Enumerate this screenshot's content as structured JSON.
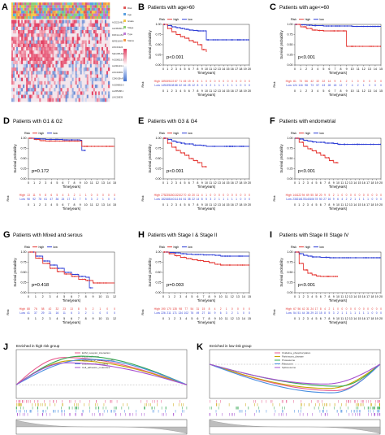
{
  "colors": {
    "high": "#e53935",
    "low": "#2f3fd6",
    "heat_red": "#e8476a",
    "heat_blue": "#4f7fd0"
  },
  "panel_a": {
    "letter": "A",
    "track_colors": [
      "#e05a5a",
      "#5aa0e0",
      "#f2c94c",
      "#8ecf73",
      "#c07cd6",
      "#f29a4c",
      "#6fd0c8",
      "#d06f9a"
    ],
    "side_genes": [
      "AC022148.1",
      "AL158166.1",
      "DDX11-AS1",
      "MIR210HG",
      "LINC01224",
      "SEC24B-AS1",
      "AC008115.3",
      "AL031123.1",
      "LINC02381",
      "CDKN2B-AS1",
      "AC099850.3",
      "AL355488.1",
      "LINC00839"
    ],
    "legend_labels": [
      "Risk",
      "Age",
      "Grade",
      "Stage",
      "Type",
      "Status"
    ]
  },
  "km_common": {
    "legend_title": "Risk",
    "legend_high": "high",
    "legend_low": "low",
    "y_label": "Survival probability",
    "x_label": "Time(years)",
    "y_ticks": [
      "0.00",
      "0.25",
      "0.50",
      "0.75",
      "1.00"
    ],
    "risk_label": "Risk",
    "risk_high": "High",
    "risk_low": "Low"
  },
  "km_panels": [
    {
      "letter": "B",
      "title": "Patients with age>60",
      "p": "p<0.001",
      "x_ticks": [
        "0",
        "1",
        "2",
        "3",
        "4",
        "5",
        "6",
        "7",
        "8",
        "9",
        "10",
        "11",
        "12",
        "13",
        "14",
        "15",
        "16",
        "17",
        "18",
        "19",
        "20"
      ],
      "high": [
        [
          0,
          1
        ],
        [
          1,
          0.9
        ],
        [
          2,
          0.82
        ],
        [
          3,
          0.75
        ],
        [
          4,
          0.7
        ],
        [
          5,
          0.66
        ],
        [
          6,
          0.6
        ],
        [
          7,
          0.56
        ],
        [
          8,
          0.5
        ],
        [
          9,
          0.38
        ],
        [
          10,
          0.32
        ]
      ],
      "low": [
        [
          0,
          1
        ],
        [
          1,
          0.97
        ],
        [
          2,
          0.94
        ],
        [
          3,
          0.92
        ],
        [
          4,
          0.9
        ],
        [
          5,
          0.88
        ],
        [
          6,
          0.86
        ],
        [
          7,
          0.85
        ],
        [
          8,
          0.84
        ],
        [
          9,
          0.84
        ],
        [
          10,
          0.62
        ],
        [
          20,
          0.62
        ]
      ],
      "risk_high": [
        "189",
        "159",
        "122",
        "87",
        "71",
        "45",
        "19",
        "8",
        "6",
        "1",
        "0",
        "0",
        "0",
        "0",
        "0",
        "0",
        "0",
        "0",
        "0",
        "0",
        "0"
      ],
      "risk_low": [
        "149",
        "139",
        "108",
        "88",
        "62",
        "46",
        "25",
        "12",
        "8",
        "4",
        "3",
        "2",
        "1",
        "1",
        "1",
        "1",
        "1",
        "1",
        "0",
        "0",
        "0"
      ]
    },
    {
      "letter": "C",
      "title": "Patients with age<=60",
      "p": "p<0.001",
      "x_ticks": [
        "0",
        "1",
        "2",
        "3",
        "4",
        "5",
        "6",
        "7",
        "8",
        "9",
        "10",
        "11",
        "12",
        "13",
        "14",
        "15"
      ],
      "high": [
        [
          0,
          1
        ],
        [
          1,
          0.94
        ],
        [
          2,
          0.9
        ],
        [
          3,
          0.86
        ],
        [
          4,
          0.85
        ],
        [
          5,
          0.84
        ],
        [
          8,
          0.84
        ],
        [
          9,
          0.46
        ],
        [
          15,
          0.46
        ]
      ],
      "low": [
        [
          0,
          1
        ],
        [
          1,
          0.99
        ],
        [
          2,
          0.98
        ],
        [
          3,
          0.97
        ],
        [
          5,
          0.96
        ],
        [
          10,
          0.95
        ],
        [
          15,
          0.95
        ]
      ],
      "risk_high": [
        "81",
        "73",
        "56",
        "42",
        "32",
        "22",
        "14",
        "9",
        "4",
        "2",
        "1",
        "0",
        "0",
        "0",
        "0",
        "0"
      ],
      "risk_low": [
        "124",
        "116",
        "98",
        "73",
        "57",
        "43",
        "28",
        "18",
        "12",
        "7",
        "4",
        "2",
        "1",
        "0",
        "0",
        "0"
      ]
    },
    {
      "letter": "D",
      "title": "Patients with G1 & G2",
      "p": "p=0.172",
      "x_ticks": [
        "0",
        "1",
        "2",
        "3",
        "4",
        "5",
        "6",
        "7",
        "8",
        "9",
        "10",
        "11",
        "12",
        "13",
        "14",
        "15"
      ],
      "high": [
        [
          0,
          1
        ],
        [
          1,
          0.97
        ],
        [
          2,
          0.94
        ],
        [
          3,
          0.93
        ],
        [
          5,
          0.93
        ],
        [
          9,
          0.93
        ],
        [
          9.3,
          0.8
        ],
        [
          15,
          0.8
        ]
      ],
      "low": [
        [
          0,
          1
        ],
        [
          1,
          0.99
        ],
        [
          2,
          0.98
        ],
        [
          3,
          0.97
        ],
        [
          6,
          0.96
        ],
        [
          9,
          0.95
        ],
        [
          9.3,
          0.7
        ],
        [
          10,
          0.7
        ]
      ],
      "risk_high": [
        "13",
        "11",
        "9",
        "8",
        "6",
        "5",
        "4",
        "3",
        "2",
        "1",
        "1",
        "0",
        "0",
        "0",
        "0",
        "0"
      ],
      "risk_low": [
        "98",
        "92",
        "78",
        "61",
        "47",
        "36",
        "24",
        "17",
        "11",
        "7",
        "5",
        "3",
        "2",
        "1",
        "0",
        "0"
      ]
    },
    {
      "letter": "E",
      "title": "Patients with G3 & G4",
      "p": "p<0.001",
      "x_ticks": [
        "0",
        "1",
        "2",
        "3",
        "4",
        "5",
        "6",
        "7",
        "8",
        "9",
        "10",
        "11",
        "12",
        "13",
        "14",
        "15",
        "16",
        "17",
        "18",
        "19",
        "20"
      ],
      "high": [
        [
          0,
          1
        ],
        [
          1,
          0.88
        ],
        [
          2,
          0.78
        ],
        [
          3,
          0.7
        ],
        [
          4,
          0.64
        ],
        [
          5,
          0.58
        ],
        [
          6,
          0.5
        ],
        [
          7,
          0.45
        ],
        [
          8,
          0.4
        ],
        [
          9,
          0.3
        ],
        [
          10,
          0.28
        ]
      ],
      "low": [
        [
          0,
          1
        ],
        [
          1,
          0.97
        ],
        [
          2,
          0.93
        ],
        [
          3,
          0.9
        ],
        [
          4,
          0.88
        ],
        [
          5,
          0.86
        ],
        [
          7,
          0.83
        ],
        [
          9,
          0.82
        ],
        [
          10,
          0.8
        ],
        [
          20,
          0.8
        ]
      ],
      "risk_high": [
        "275",
        "235",
        "180",
        "132",
        "102",
        "70",
        "40",
        "20",
        "11",
        "4",
        "1",
        "0",
        "0",
        "0",
        "0",
        "0",
        "0",
        "0",
        "0",
        "0",
        "0"
      ],
      "risk_low": [
        "182",
        "168",
        "140",
        "111",
        "84",
        "61",
        "38",
        "22",
        "14",
        "8",
        "5",
        "3",
        "2",
        "1",
        "1",
        "1",
        "1",
        "1",
        "0",
        "0",
        "0"
      ]
    },
    {
      "letter": "F",
      "title": "Patients with endometrial",
      "p": "p<0.001",
      "x_ticks": [
        "0",
        "1",
        "2",
        "3",
        "4",
        "5",
        "6",
        "7",
        "8",
        "9",
        "10",
        "11",
        "12",
        "13",
        "14",
        "15",
        "16",
        "17",
        "18",
        "19",
        "20"
      ],
      "high": [
        [
          0,
          1
        ],
        [
          1,
          0.9
        ],
        [
          2,
          0.8
        ],
        [
          3,
          0.74
        ],
        [
          4,
          0.69
        ],
        [
          5,
          0.64
        ],
        [
          6,
          0.58
        ],
        [
          7,
          0.52
        ],
        [
          8,
          0.45
        ],
        [
          9,
          0.4
        ],
        [
          10,
          0.38
        ]
      ],
      "low": [
        [
          0,
          1
        ],
        [
          1,
          0.98
        ],
        [
          2,
          0.95
        ],
        [
          3,
          0.93
        ],
        [
          4,
          0.91
        ],
        [
          5,
          0.9
        ],
        [
          7,
          0.88
        ],
        [
          9,
          0.87
        ],
        [
          10,
          0.85
        ],
        [
          20,
          0.85
        ]
      ],
      "risk_high": [
        "144",
        "122",
        "94",
        "69",
        "55",
        "38",
        "20",
        "9",
        "5",
        "2",
        "1",
        "0",
        "0",
        "0",
        "0",
        "0",
        "0",
        "0",
        "0",
        "0",
        "0"
      ],
      "risk_low": [
        "230",
        "216",
        "178",
        "140",
        "106",
        "78",
        "50",
        "27",
        "16",
        "9",
        "6",
        "4",
        "2",
        "2",
        "1",
        "1",
        "1",
        "1",
        "0",
        "0",
        "0"
      ]
    },
    {
      "letter": "G",
      "title": "Patients with Mixed and serous",
      "p": "p=0.418",
      "x_ticks": [
        "0",
        "1",
        "2",
        "3",
        "4",
        "5",
        "6",
        "7",
        "8",
        "9",
        "10",
        "11",
        "12"
      ],
      "high": [
        [
          0,
          1
        ],
        [
          1,
          0.85
        ],
        [
          2,
          0.72
        ],
        [
          3,
          0.6
        ],
        [
          4,
          0.52
        ],
        [
          5,
          0.46
        ],
        [
          6,
          0.4
        ],
        [
          7,
          0.33
        ],
        [
          8,
          0.3
        ],
        [
          9,
          0.24
        ],
        [
          12,
          0.24
        ]
      ],
      "low": [
        [
          0,
          1
        ],
        [
          1,
          0.9
        ],
        [
          2,
          0.78
        ],
        [
          3,
          0.68
        ],
        [
          4,
          0.6
        ],
        [
          5,
          0.5
        ],
        [
          6,
          0.45
        ],
        [
          7,
          0.4
        ],
        [
          8,
          0.38
        ],
        [
          8.5,
          0.12
        ],
        [
          9,
          0.12
        ]
      ],
      "risk_high": [
        "88",
        "76",
        "58",
        "42",
        "32",
        "23",
        "13",
        "8",
        "5",
        "2",
        "1",
        "0",
        "0"
      ],
      "risk_low": [
        "41",
        "37",
        "29",
        "21",
        "16",
        "11",
        "6",
        "3",
        "2",
        "1",
        "0",
        "0",
        "0"
      ]
    },
    {
      "letter": "H",
      "title": "Patients with Stage I & Stage II",
      "p": "p=0.003",
      "x_ticks": [
        "0",
        "1",
        "2",
        "3",
        "4",
        "5",
        "6",
        "7",
        "8",
        "9",
        "10",
        "11",
        "12",
        "13",
        "14",
        "15"
      ],
      "high": [
        [
          0,
          1
        ],
        [
          1,
          0.96
        ],
        [
          2,
          0.91
        ],
        [
          3,
          0.87
        ],
        [
          4,
          0.84
        ],
        [
          5,
          0.81
        ],
        [
          6,
          0.79
        ],
        [
          7,
          0.77
        ],
        [
          8,
          0.74
        ],
        [
          9,
          0.7
        ],
        [
          10,
          0.68
        ],
        [
          15,
          0.68
        ]
      ],
      "low": [
        [
          0,
          1
        ],
        [
          1,
          0.99
        ],
        [
          2,
          0.98
        ],
        [
          3,
          0.96
        ],
        [
          4,
          0.95
        ],
        [
          5,
          0.94
        ],
        [
          7,
          0.93
        ],
        [
          9,
          0.92
        ],
        [
          10,
          0.9
        ],
        [
          15,
          0.9
        ]
      ],
      "risk_high": [
        "190",
        "170",
        "135",
        "98",
        "77",
        "54",
        "31",
        "15",
        "8",
        "4",
        "2",
        "1",
        "0",
        "0",
        "0",
        "0"
      ],
      "risk_low": [
        "226",
        "211",
        "171",
        "134",
        "102",
        "76",
        "49",
        "27",
        "16",
        "9",
        "6",
        "3",
        "2",
        "1",
        "0",
        "0"
      ]
    },
    {
      "letter": "I",
      "title": "Patients with Stage III Stage IV",
      "p": "p<0.001",
      "x_ticks": [
        "0",
        "1",
        "2",
        "3",
        "4",
        "5",
        "6",
        "7",
        "8",
        "9",
        "10",
        "11",
        "12",
        "13",
        "14",
        "15",
        "16",
        "17",
        "18",
        "19",
        "20"
      ],
      "high": [
        [
          0,
          1
        ],
        [
          1,
          0.72
        ],
        [
          2,
          0.56
        ],
        [
          3,
          0.48
        ],
        [
          4,
          0.44
        ],
        [
          5,
          0.41
        ],
        [
          6,
          0.4
        ],
        [
          8,
          0.4
        ],
        [
          10,
          0.4
        ]
      ],
      "low": [
        [
          0,
          1
        ],
        [
          1,
          0.96
        ],
        [
          2,
          0.92
        ],
        [
          3,
          0.9
        ],
        [
          4,
          0.88
        ],
        [
          6,
          0.87
        ],
        [
          8,
          0.86
        ],
        [
          10,
          0.86
        ],
        [
          20,
          0.86
        ]
      ],
      "risk_high": [
        "67",
        "56",
        "42",
        "31",
        "24",
        "17",
        "8",
        "4",
        "2",
        "1",
        "0",
        "0",
        "0",
        "0",
        "0",
        "0",
        "0",
        "0",
        "0",
        "0",
        "0"
      ],
      "risk_low": [
        "54",
        "51",
        "44",
        "36",
        "29",
        "22",
        "15",
        "8",
        "5",
        "3",
        "2",
        "1",
        "1",
        "1",
        "1",
        "1",
        "1",
        "1",
        "0",
        "0",
        "0"
      ]
    }
  ],
  "gsea": [
    {
      "letter": "J",
      "title": "Enriched in high risk group",
      "series": [
        {
          "name": "ECM_receptor_interaction",
          "color": "#e85a8e",
          "peak": 0.62,
          "peak_at": 0.28
        },
        {
          "name": "Focal_adhesion",
          "color": "#c8a400",
          "peak": 0.55,
          "peak_at": 0.33
        },
        {
          "name": "Hypertrophic_cardiomyopathy",
          "color": "#34a853",
          "peak": 0.65,
          "peak_at": 0.38
        },
        {
          "name": "Dilated_cardiomyopathy",
          "color": "#4a8fe0",
          "peak": 0.58,
          "peak_at": 0.42
        },
        {
          "name": "Cell_adhesion_molecules",
          "color": "#a64fd0",
          "peak": 0.5,
          "peak_at": 0.3
        }
      ]
    },
    {
      "letter": "K",
      "title": "Enriched in low risk group",
      "series": [
        {
          "name": "Oxidative_phosphorylation",
          "color": "#e85a8e",
          "peak": -0.6,
          "peak_at": 0.74
        },
        {
          "name": "Parkinsons_disease",
          "color": "#c8a400",
          "peak": -0.55,
          "peak_at": 0.7
        },
        {
          "name": "Proteasome",
          "color": "#34a853",
          "peak": -0.5,
          "peak_at": 0.76
        },
        {
          "name": "Ribosome",
          "color": "#4a8fe0",
          "peak": -0.65,
          "peak_at": 0.72
        },
        {
          "name": "Spliceosome",
          "color": "#a64fd0",
          "peak": -0.45,
          "peak_at": 0.68
        }
      ]
    }
  ]
}
